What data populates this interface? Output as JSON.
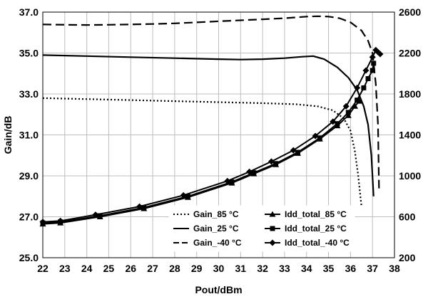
{
  "chart_data": {
    "type": "line",
    "xlabel": "Pout/dBm",
    "ylabel": "Gain/dB",
    "xlim": [
      22,
      38
    ],
    "ylim_left": [
      25.0,
      37.0
    ],
    "ylim_right": [
      200,
      2600
    ],
    "x_ticks": [
      "22",
      "23",
      "24",
      "25",
      "26",
      "27",
      "28",
      "29",
      "30",
      "31",
      "32",
      "33",
      "34",
      "35",
      "36",
      "37",
      "38"
    ],
    "y_left_ticks": [
      "25.0",
      "27.0",
      "29.0",
      "31.0",
      "33.0",
      "35.0",
      "37.0"
    ],
    "y_right_ticks": [
      "200",
      "600",
      "1000",
      "1400",
      "1800",
      "2200",
      "2600"
    ],
    "grid": true,
    "legend_position": "bottom-center",
    "series": [
      {
        "name": "Gain_85 °C",
        "axis": "left",
        "style": "dotted",
        "marker": "none",
        "x": [
          22.0,
          24.0,
          26.0,
          28.0,
          30.0,
          32.0,
          33.5,
          34.5,
          35.2,
          35.7,
          36.0,
          36.2,
          36.35,
          36.45,
          36.5
        ],
        "y": [
          32.8,
          32.75,
          32.7,
          32.65,
          32.6,
          32.55,
          32.5,
          32.4,
          32.2,
          31.8,
          31.2,
          30.2,
          29.0,
          28.0,
          27.5
        ]
      },
      {
        "name": "Gain_25 °C",
        "axis": "left",
        "style": "solid",
        "marker": "none",
        "x": [
          22.0,
          24.0,
          26.0,
          28.0,
          30.0,
          31.0,
          32.0,
          33.0,
          33.8,
          34.3,
          34.8,
          35.4,
          35.9,
          36.3,
          36.6,
          36.8,
          36.95,
          37.05
        ],
        "y": [
          34.9,
          34.85,
          34.8,
          34.75,
          34.7,
          34.68,
          34.7,
          34.75,
          34.82,
          34.85,
          34.7,
          34.3,
          33.8,
          33.2,
          32.4,
          31.5,
          30.0,
          28.0
        ]
      },
      {
        "name": "Gain_-40 °C",
        "axis": "left",
        "style": "dashed",
        "marker": "none",
        "x": [
          22.0,
          23.0,
          24.0,
          25.0,
          26.0,
          27.0,
          28.0,
          29.0,
          30.0,
          31.0,
          32.0,
          33.0,
          34.0,
          34.5,
          35.0,
          35.5,
          36.0,
          36.5,
          36.8,
          37.0,
          37.15,
          37.25,
          37.3
        ],
        "y": [
          36.4,
          36.38,
          36.37,
          36.38,
          36.4,
          36.42,
          36.45,
          36.5,
          36.55,
          36.6,
          36.65,
          36.7,
          36.78,
          36.8,
          36.78,
          36.7,
          36.5,
          36.1,
          35.6,
          35.0,
          33.5,
          31.5,
          28.2
        ]
      },
      {
        "name": "Idd_total_85 °C",
        "axis": "right",
        "style": "solid",
        "marker": "triangle",
        "x": [
          22.0,
          22.8,
          24.6,
          26.6,
          28.6,
          30.6,
          31.6,
          32.6,
          33.6,
          34.6,
          35.4,
          35.9,
          36.2,
          36.4
        ],
        "y": [
          530,
          540,
          600,
          680,
          790,
          930,
          1020,
          1110,
          1220,
          1360,
          1490,
          1590,
          1680,
          1730
        ]
      },
      {
        "name": "Idd_total_25 °C",
        "axis": "right",
        "style": "solid",
        "marker": "square",
        "x": [
          22.0,
          22.8,
          24.6,
          26.6,
          28.6,
          30.6,
          31.6,
          32.6,
          33.6,
          34.6,
          35.4,
          35.9,
          36.3,
          36.6,
          36.8,
          37.0,
          37.05
        ],
        "y": [
          540,
          550,
          610,
          690,
          800,
          940,
          1030,
          1120,
          1230,
          1370,
          1510,
          1620,
          1740,
          1860,
          1950,
          2030,
          2100
        ]
      },
      {
        "name": "Idd_total_-40 °C",
        "axis": "right",
        "style": "solid",
        "marker": "diamond",
        "x": [
          22.0,
          22.8,
          24.4,
          26.4,
          28.4,
          30.4,
          31.4,
          32.4,
          33.4,
          34.4,
          35.2,
          35.8,
          36.3,
          36.7,
          37.0,
          37.15,
          37.25,
          37.35
        ],
        "y": [
          550,
          560,
          620,
          700,
          810,
          950,
          1040,
          1140,
          1250,
          1390,
          1530,
          1680,
          1860,
          2030,
          2160,
          2230,
          2210,
          2190
        ]
      }
    ]
  }
}
